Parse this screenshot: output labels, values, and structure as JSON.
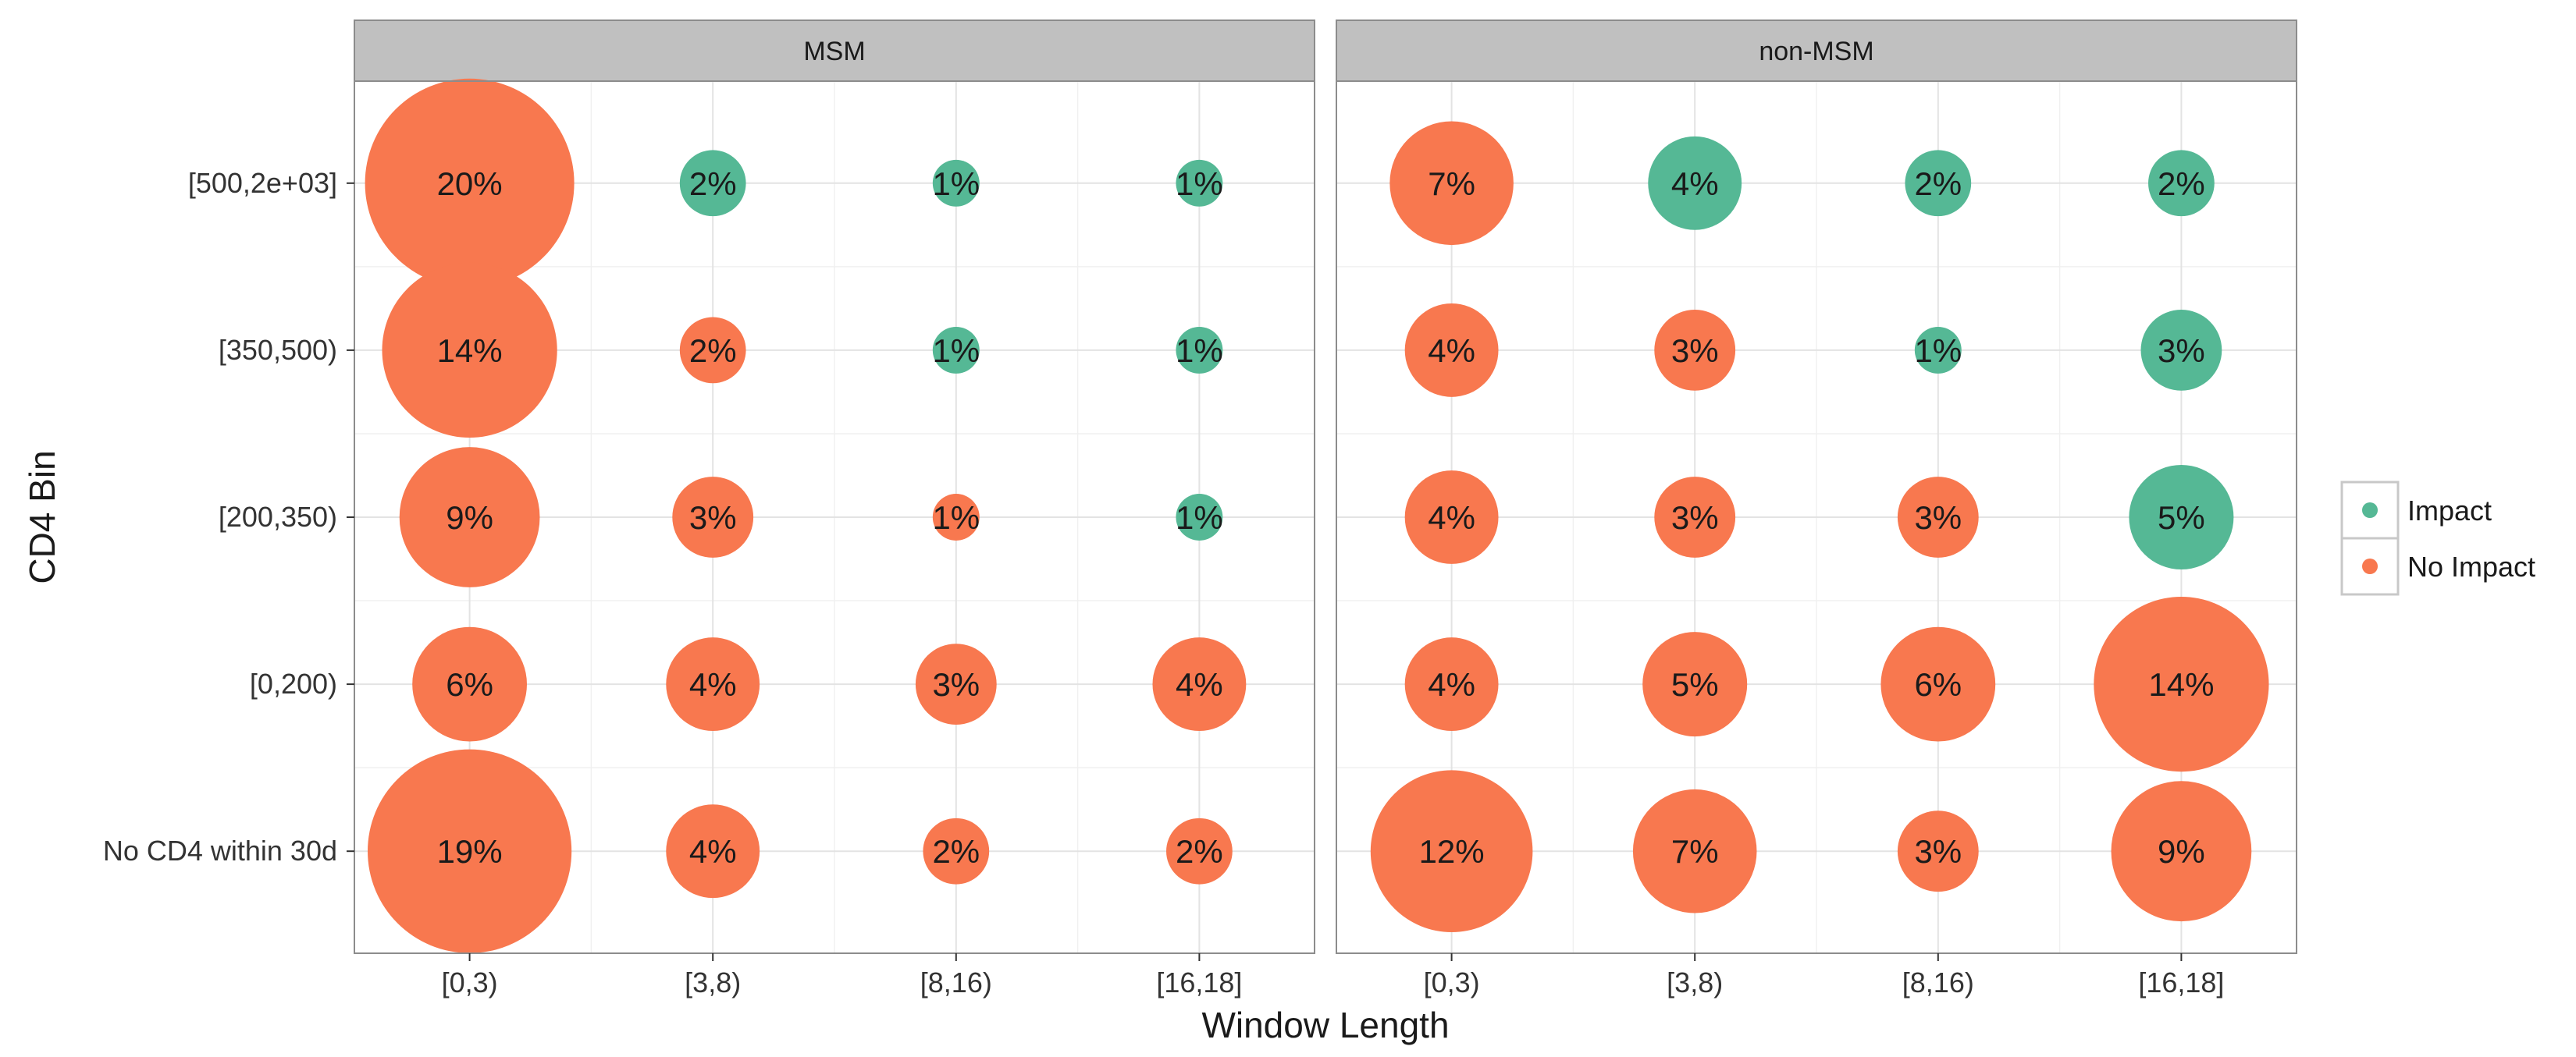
{
  "chart_data": {
    "type": "scatter",
    "subtype": "faceted-bubble",
    "xlabel": "Window Length",
    "ylabel": "CD4 Bin",
    "x_categories": [
      "[0,3)",
      "[3,8)",
      "[8,16)",
      "[16,18]"
    ],
    "y_categories": [
      "[500,2e+03]",
      "[350,500)",
      "[200,350)",
      "[0,200)",
      "No CD4 within 30d"
    ],
    "grid": true,
    "legend": {
      "placement": "right",
      "entries": [
        {
          "key": "impact",
          "label": "Impact",
          "color": "#55b895"
        },
        {
          "key": "no_impact",
          "label": "No Impact",
          "color": "#f8784f"
        }
      ]
    },
    "facets": [
      {
        "name": "MSM",
        "points": [
          {
            "x": "[0,3)",
            "y": "[500,2e+03]",
            "value": 20,
            "label": "20%",
            "group": "no_impact"
          },
          {
            "x": "[3,8)",
            "y": "[500,2e+03]",
            "value": 2,
            "label": "2%",
            "group": "impact"
          },
          {
            "x": "[8,16)",
            "y": "[500,2e+03]",
            "value": 1,
            "label": "1%",
            "group": "impact"
          },
          {
            "x": "[16,18]",
            "y": "[500,2e+03]",
            "value": 1,
            "label": "1%",
            "group": "impact"
          },
          {
            "x": "[0,3)",
            "y": "[350,500)",
            "value": 14,
            "label": "14%",
            "group": "no_impact"
          },
          {
            "x": "[3,8)",
            "y": "[350,500)",
            "value": 2,
            "label": "2%",
            "group": "no_impact"
          },
          {
            "x": "[8,16)",
            "y": "[350,500)",
            "value": 1,
            "label": "1%",
            "group": "impact"
          },
          {
            "x": "[16,18]",
            "y": "[350,500)",
            "value": 1,
            "label": "1%",
            "group": "impact"
          },
          {
            "x": "[0,3)",
            "y": "[200,350)",
            "value": 9,
            "label": "9%",
            "group": "no_impact"
          },
          {
            "x": "[3,8)",
            "y": "[200,350)",
            "value": 3,
            "label": "3%",
            "group": "no_impact"
          },
          {
            "x": "[8,16)",
            "y": "[200,350)",
            "value": 1,
            "label": "1%",
            "group": "no_impact"
          },
          {
            "x": "[16,18]",
            "y": "[200,350)",
            "value": 1,
            "label": "1%",
            "group": "impact"
          },
          {
            "x": "[0,3)",
            "y": "[0,200)",
            "value": 6,
            "label": "6%",
            "group": "no_impact"
          },
          {
            "x": "[3,8)",
            "y": "[0,200)",
            "value": 4,
            "label": "4%",
            "group": "no_impact"
          },
          {
            "x": "[8,16)",
            "y": "[0,200)",
            "value": 3,
            "label": "3%",
            "group": "no_impact"
          },
          {
            "x": "[16,18]",
            "y": "[0,200)",
            "value": 4,
            "label": "4%",
            "group": "no_impact"
          },
          {
            "x": "[0,3)",
            "y": "No CD4 within 30d",
            "value": 19,
            "label": "19%",
            "group": "no_impact"
          },
          {
            "x": "[3,8)",
            "y": "No CD4 within 30d",
            "value": 4,
            "label": "4%",
            "group": "no_impact"
          },
          {
            "x": "[8,16)",
            "y": "No CD4 within 30d",
            "value": 2,
            "label": "2%",
            "group": "no_impact"
          },
          {
            "x": "[16,18]",
            "y": "No CD4 within 30d",
            "value": 2,
            "label": "2%",
            "group": "no_impact"
          }
        ]
      },
      {
        "name": "non-MSM",
        "points": [
          {
            "x": "[0,3)",
            "y": "[500,2e+03]",
            "value": 7,
            "label": "7%",
            "group": "no_impact"
          },
          {
            "x": "[3,8)",
            "y": "[500,2e+03]",
            "value": 4,
            "label": "4%",
            "group": "impact"
          },
          {
            "x": "[8,16)",
            "y": "[500,2e+03]",
            "value": 2,
            "label": "2%",
            "group": "impact"
          },
          {
            "x": "[16,18]",
            "y": "[500,2e+03]",
            "value": 2,
            "label": "2%",
            "group": "impact"
          },
          {
            "x": "[0,3)",
            "y": "[350,500)",
            "value": 4,
            "label": "4%",
            "group": "no_impact"
          },
          {
            "x": "[3,8)",
            "y": "[350,500)",
            "value": 3,
            "label": "3%",
            "group": "no_impact"
          },
          {
            "x": "[8,16)",
            "y": "[350,500)",
            "value": 1,
            "label": "1%",
            "group": "impact"
          },
          {
            "x": "[16,18]",
            "y": "[350,500)",
            "value": 3,
            "label": "3%",
            "group": "impact"
          },
          {
            "x": "[0,3)",
            "y": "[200,350)",
            "value": 4,
            "label": "4%",
            "group": "no_impact"
          },
          {
            "x": "[3,8)",
            "y": "[200,350)",
            "value": 3,
            "label": "3%",
            "group": "no_impact"
          },
          {
            "x": "[8,16)",
            "y": "[200,350)",
            "value": 3,
            "label": "3%",
            "group": "no_impact"
          },
          {
            "x": "[16,18]",
            "y": "[200,350)",
            "value": 5,
            "label": "5%",
            "group": "impact"
          },
          {
            "x": "[0,3)",
            "y": "[0,200)",
            "value": 4,
            "label": "4%",
            "group": "no_impact"
          },
          {
            "x": "[3,8)",
            "y": "[0,200)",
            "value": 5,
            "label": "5%",
            "group": "no_impact"
          },
          {
            "x": "[8,16)",
            "y": "[0,200)",
            "value": 6,
            "label": "6%",
            "group": "no_impact"
          },
          {
            "x": "[16,18]",
            "y": "[0,200)",
            "value": 14,
            "label": "14%",
            "group": "no_impact"
          },
          {
            "x": "[0,3)",
            "y": "No CD4 within 30d",
            "value": 12,
            "label": "12%",
            "group": "no_impact"
          },
          {
            "x": "[3,8)",
            "y": "No CD4 within 30d",
            "value": 7,
            "label": "7%",
            "group": "no_impact"
          },
          {
            "x": "[8,16)",
            "y": "No CD4 within 30d",
            "value": 3,
            "label": "3%",
            "group": "no_impact"
          },
          {
            "x": "[16,18]",
            "y": "No CD4 within 30d",
            "value": 9,
            "label": "9%",
            "group": "no_impact"
          }
        ]
      }
    ]
  }
}
